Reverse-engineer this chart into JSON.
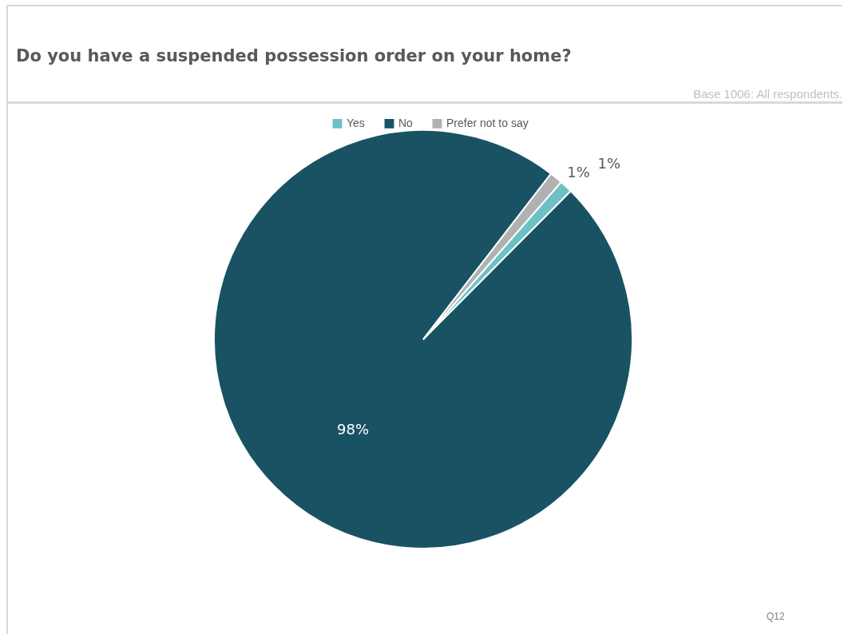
{
  "chart_data": {
    "type": "pie",
    "title": "Do you have a suspended possession order on your home?",
    "categories": [
      "Yes",
      "No",
      "Prefer not to say"
    ],
    "values": [
      1,
      98,
      1
    ],
    "colors": [
      "#6cc0c6",
      "#195363",
      "#b1b1b1"
    ],
    "value_labels": [
      "1%",
      "98%",
      "1%"
    ],
    "legend": "top",
    "annotations": [
      "Base 1006: All respondents.",
      "Q12"
    ]
  }
}
